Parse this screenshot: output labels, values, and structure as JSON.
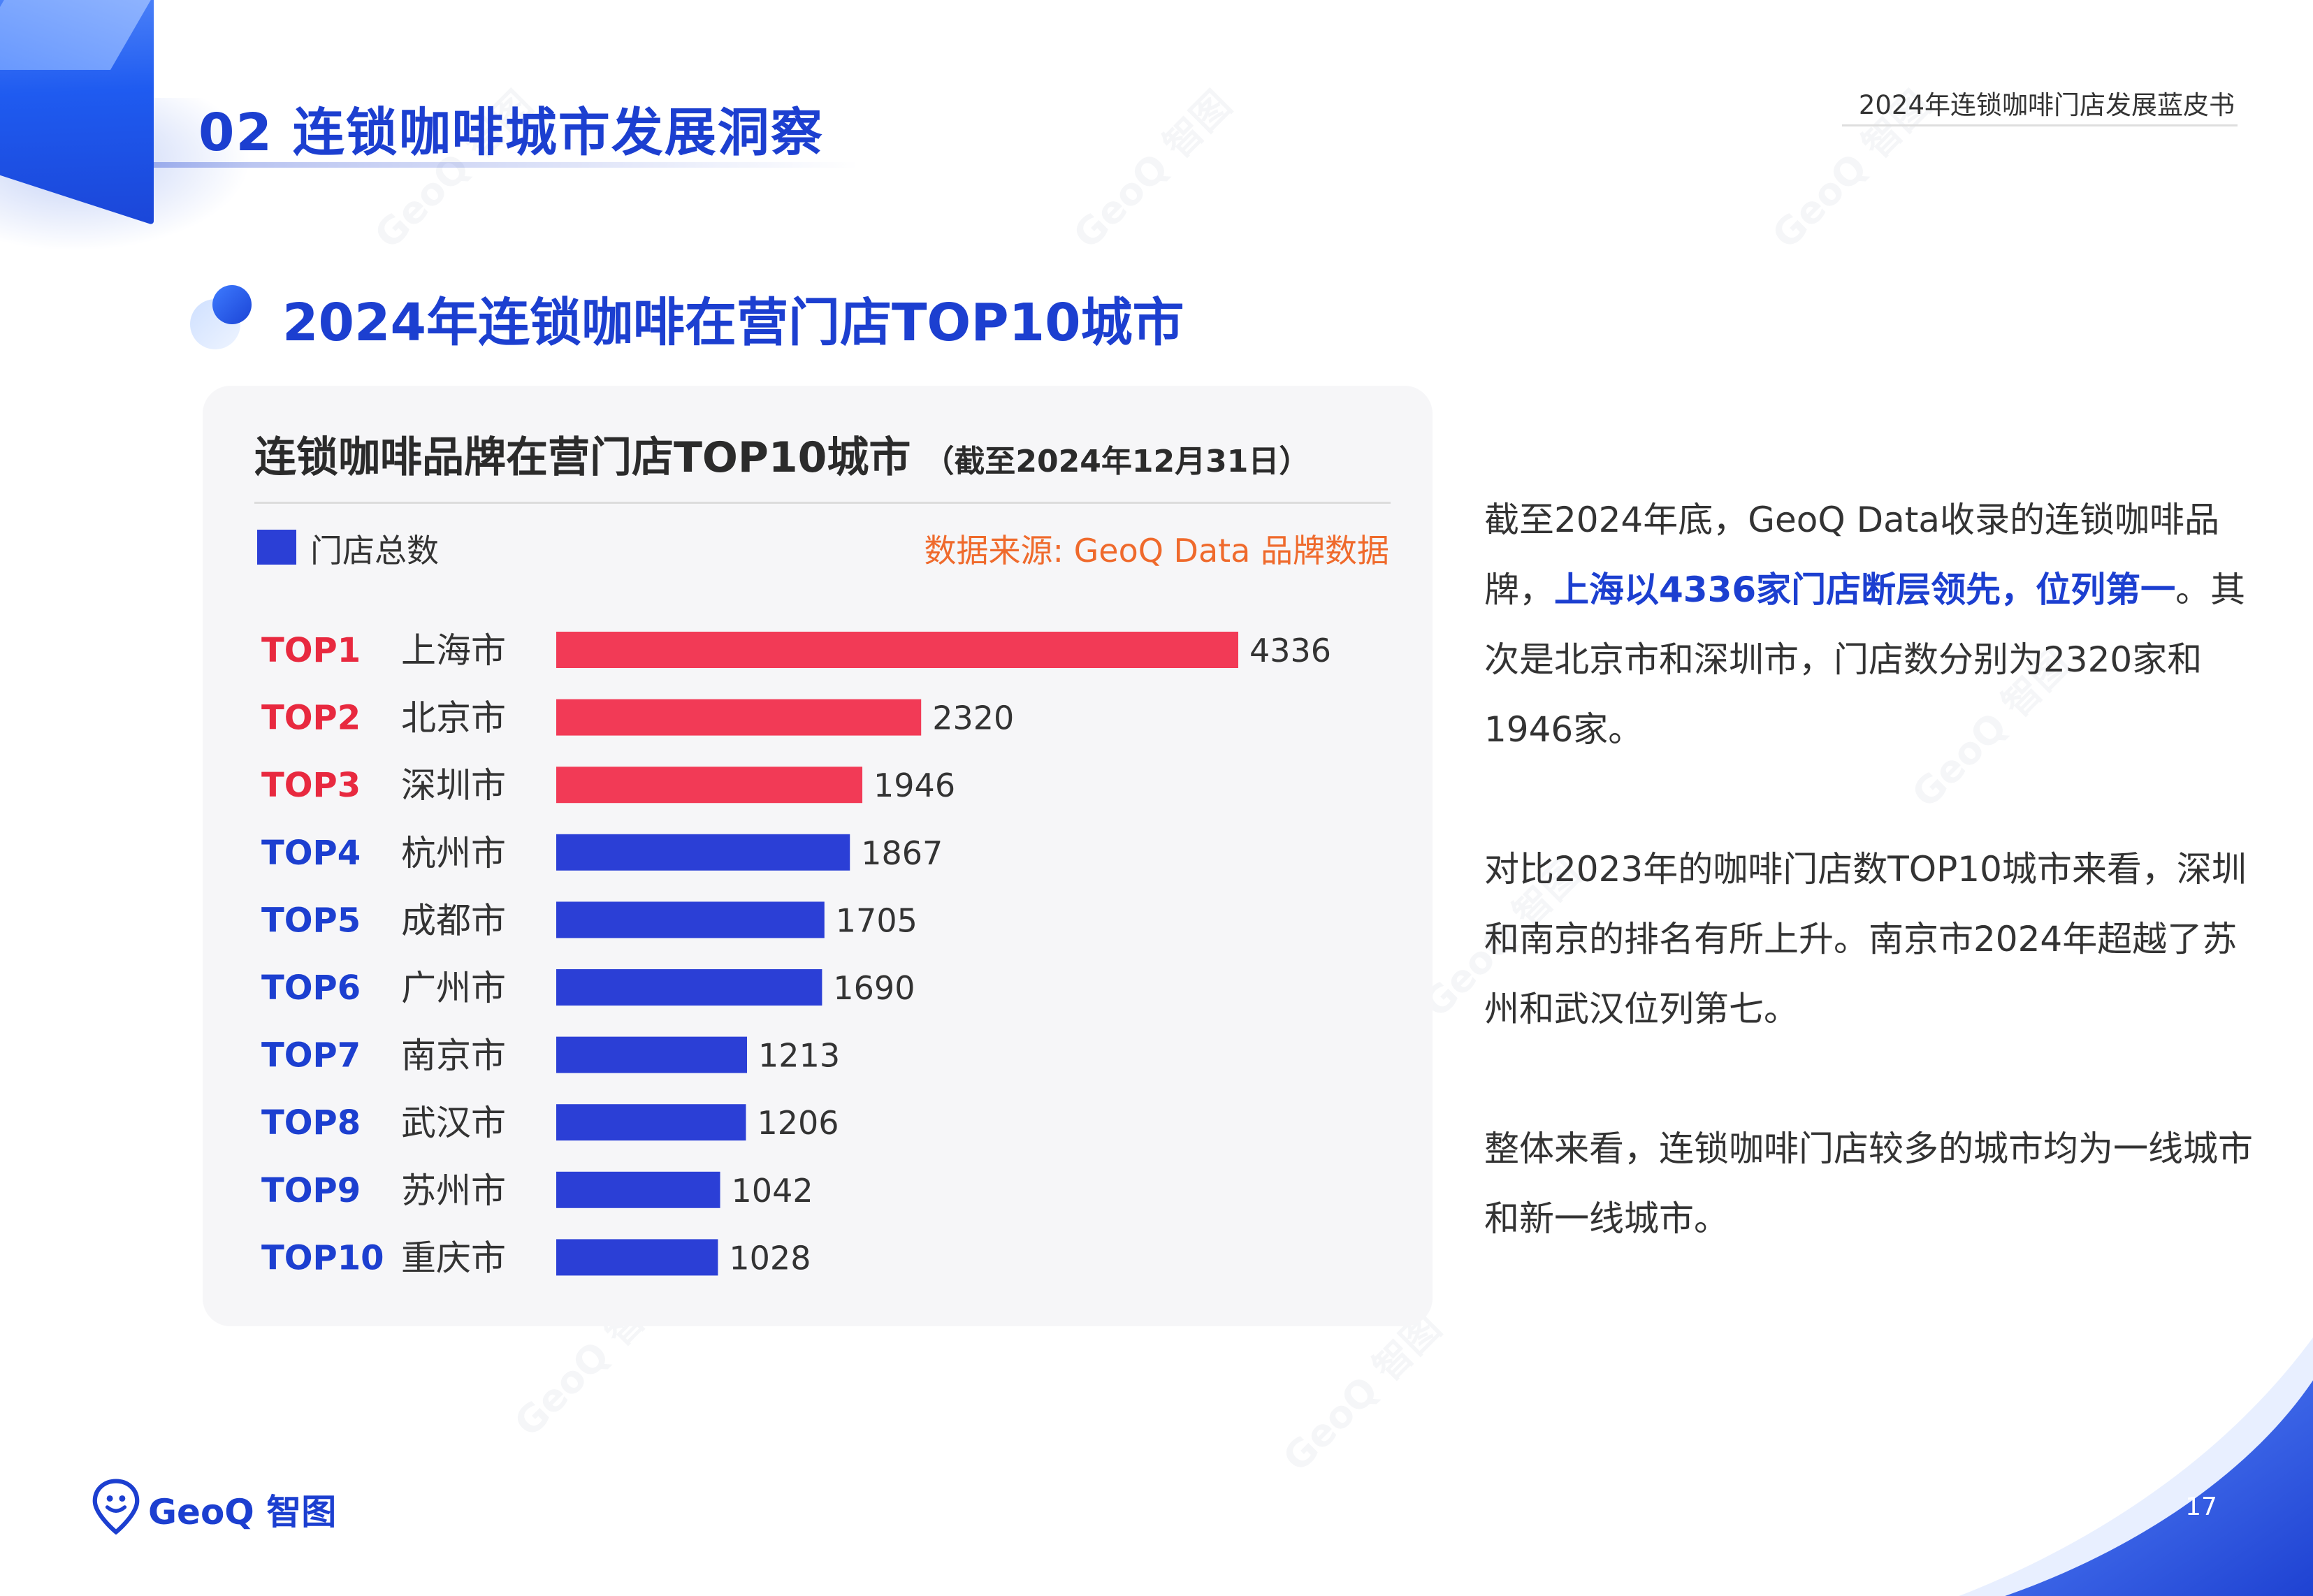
{
  "header": {
    "section_title": "02 连锁咖啡城市发展洞察",
    "report_title": "2024年连锁咖啡门店发展蓝皮书"
  },
  "subtitle": "2024年连锁咖啡在营门店TOP10城市",
  "chart_data": {
    "type": "bar",
    "orientation": "horizontal",
    "title": "连锁咖啡品牌在营门店TOP10城市",
    "subtitle": "（截至2024年12月31日）",
    "legend": "门店总数",
    "source": "数据来源: GeoQ Data 品牌数据",
    "ranks": [
      "TOP1",
      "TOP2",
      "TOP3",
      "TOP4",
      "TOP5",
      "TOP6",
      "TOP7",
      "TOP8",
      "TOP9",
      "TOP10"
    ],
    "categories": [
      "上海市",
      "北京市",
      "深圳市",
      "杭州市",
      "成都市",
      "广州市",
      "南京市",
      "武汉市",
      "苏州市",
      "重庆市"
    ],
    "values": [
      4336,
      2320,
      1946,
      1867,
      1705,
      1690,
      1213,
      1206,
      1042,
      1028
    ],
    "highlight_count": 3,
    "colors": {
      "highlight": "#f23a56",
      "normal": "#2b3fd6",
      "rank_highlight": "#e8293f",
      "rank_normal": "#1c3fd0"
    },
    "xlim": [
      0,
      4336
    ],
    "grid": false
  },
  "text": {
    "p1_a": "截至2024年底，GeoQ Data收录的连锁咖啡品牌，",
    "p1_highlight": "上海以4336家门店断层领先，位列第一",
    "p1_b": "。其次是北京市和深圳市，门店数分别为2320家和1946家。",
    "p2": "对比2023年的咖啡门店数TOP10城市来看，深圳和南京的排名有所上升。南京市2024年超越了苏州和武汉位列第七。",
    "p3": "整体来看，连锁咖啡门店较多的城市均为一线城市和新一线城市。"
  },
  "footer": {
    "logo_text": "GeoQ 智图",
    "page_number": "17"
  },
  "icons": {
    "bubble": "bubble-icon",
    "logo": "map-pin-smile-icon"
  }
}
